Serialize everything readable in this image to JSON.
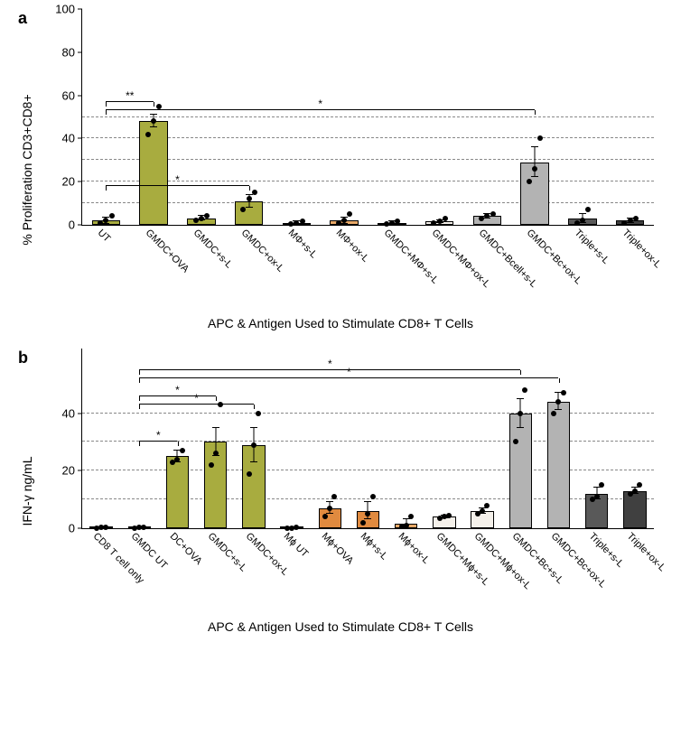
{
  "panel_a": {
    "label": "a",
    "type": "bar",
    "y_label": "% Proliferation CD3+CD8+",
    "x_axis_title": "APC & Antigen Used to Stimulate CD8+ T Cells",
    "ylim": [
      0,
      100
    ],
    "yticks": [
      0,
      20,
      40,
      60,
      80,
      100
    ],
    "gridlines": [
      10,
      20,
      30,
      40,
      50
    ],
    "grid_color": "#888888",
    "background_color": "#ffffff",
    "bar_border": "#000000",
    "point_color": "#000000",
    "label_fontsize": 13,
    "title_fontsize": 14,
    "colors": {
      "olive": "#a8ac3f",
      "darkorange": "#cc6b1f",
      "orange": "#e08a3f",
      "lightorange": "#e8a968",
      "whiteish": "#f4f0ea",
      "gray": "#b3b3b3",
      "darkgray": "#595959",
      "darkergray": "#404040"
    },
    "categories": [
      {
        "label": "UT",
        "value": 2,
        "err": 1.5,
        "points": [
          1,
          2,
          4
        ],
        "color": "olive"
      },
      {
        "label": "GMDC+OVA",
        "value": 48,
        "err": 3,
        "points": [
          42,
          48,
          55
        ],
        "color": "olive"
      },
      {
        "label": "GMDC+s-L",
        "value": 3,
        "err": 1,
        "points": [
          2,
          3,
          4
        ],
        "color": "olive"
      },
      {
        "label": "GMDC+ox-L",
        "value": 11,
        "err": 3,
        "points": [
          7,
          12,
          15
        ],
        "color": "olive"
      },
      {
        "label": "MΦ+s-L",
        "value": 1,
        "err": 0.5,
        "points": [
          0.5,
          1,
          1.5
        ],
        "color": "darkorange"
      },
      {
        "label": "MΦ+ox-L",
        "value": 2,
        "err": 1.5,
        "points": [
          1,
          2,
          5
        ],
        "color": "lightorange"
      },
      {
        "label": "GMDC+MΦ+s-L",
        "value": 1,
        "err": 0.5,
        "points": [
          0.5,
          1,
          1.5
        ],
        "color": "whiteish"
      },
      {
        "label": "GMDC+MΦ+ox-L",
        "value": 1.5,
        "err": 0.5,
        "points": [
          1,
          1.5,
          3
        ],
        "color": "whiteish"
      },
      {
        "label": "GMDC+Bcell+s-L",
        "value": 4,
        "err": 1,
        "points": [
          3,
          4,
          5
        ],
        "color": "gray"
      },
      {
        "label": "GMDC+Bc+ox-L",
        "value": 29,
        "err": 7,
        "points": [
          20,
          26,
          40
        ],
        "color": "gray"
      },
      {
        "label": "Triple+s-L",
        "value": 3,
        "err": 2,
        "points": [
          1,
          2,
          7
        ],
        "color": "darkgray"
      },
      {
        "label": "Triple+ox-L",
        "value": 2,
        "err": 1,
        "points": [
          1,
          2,
          3
        ],
        "color": "darkergray"
      }
    ],
    "sig_bars": [
      {
        "from": 0,
        "to": 1,
        "y": 57,
        "label": "**"
      },
      {
        "from": 0,
        "to": 3,
        "y": 18,
        "label": "*"
      },
      {
        "from": 0,
        "to": 9,
        "y": 53,
        "label": "*"
      }
    ]
  },
  "panel_b": {
    "label": "b",
    "type": "bar",
    "y_label": "IFN-γ ng/mL",
    "x_axis_title": "APC & Antigen Used to Stimulate CD8+ T Cells",
    "ylim": [
      0,
      50
    ],
    "yticks": [
      0,
      20,
      40
    ],
    "gridlines": [
      10,
      20,
      30,
      40
    ],
    "grid_color": "#888888",
    "background_color": "#ffffff",
    "bar_border": "#000000",
    "point_color": "#000000",
    "top_pad": 1.25,
    "colors": {
      "olive": "#a8ac3f",
      "darkorange": "#cc6b1f",
      "orange": "#e08a3f",
      "lightorange": "#e8a968",
      "whiteish": "#f4f0ea",
      "gray": "#b3b3b3",
      "darkgray": "#595959",
      "darkergray": "#404040"
    },
    "categories": [
      {
        "label": "CD8 T cell only",
        "value": 0.2,
        "err": 0.2,
        "points": [
          0.1,
          0.2,
          0.3
        ],
        "color": "olive"
      },
      {
        "label": "GMDC UT",
        "value": 0.2,
        "err": 0.2,
        "points": [
          0.1,
          0.2,
          0.3
        ],
        "color": "olive"
      },
      {
        "label": "DC+OVA",
        "value": 25,
        "err": 2,
        "points": [
          23,
          24,
          27
        ],
        "color": "olive"
      },
      {
        "label": "GMDC+s-L",
        "value": 30,
        "err": 5,
        "points": [
          22,
          26,
          43
        ],
        "color": "olive"
      },
      {
        "label": "GMDC+ox-L",
        "value": 29,
        "err": 6,
        "points": [
          19,
          29,
          40
        ],
        "color": "olive"
      },
      {
        "label": "Mϕ UT",
        "value": 0.1,
        "err": 0.1,
        "points": [
          0.05,
          0.1,
          0.2
        ],
        "color": "darkorange"
      },
      {
        "label": "Mϕ+OVA",
        "value": 7,
        "err": 2,
        "points": [
          4,
          7,
          11
        ],
        "color": "orange"
      },
      {
        "label": "Mϕ+s-L",
        "value": 6,
        "err": 3,
        "points": [
          2,
          5,
          11
        ],
        "color": "orange"
      },
      {
        "label": "Mϕ+ox-L",
        "value": 1.5,
        "err": 1.5,
        "points": [
          0.5,
          1,
          4
        ],
        "color": "lightorange"
      },
      {
        "label": "GMDC+Mϕ+s-L",
        "value": 4,
        "err": 0.5,
        "points": [
          3.5,
          4,
          4.5
        ],
        "color": "whiteish"
      },
      {
        "label": "GMDC+Mϕ+ox-L",
        "value": 6,
        "err": 1,
        "points": [
          5,
          6,
          8
        ],
        "color": "whiteish"
      },
      {
        "label": "GMDC+Bc+s-L",
        "value": 40,
        "err": 5,
        "points": [
          30,
          40,
          48
        ],
        "color": "gray"
      },
      {
        "label": "GMDC+Bc+ox-L",
        "value": 44,
        "err": 3,
        "points": [
          40,
          44,
          47
        ],
        "color": "gray"
      },
      {
        "label": "Triple+s-L",
        "value": 12,
        "err": 2,
        "points": [
          10,
          11,
          15
        ],
        "color": "darkgray"
      },
      {
        "label": "Triple+ox-L",
        "value": 13,
        "err": 1,
        "points": [
          12,
          13,
          15
        ],
        "color": "darkergray"
      }
    ],
    "sig_bars": [
      {
        "from": 1,
        "to": 2,
        "y": 30,
        "label": "*"
      },
      {
        "from": 1,
        "to": 3,
        "y": 46,
        "label": "*"
      },
      {
        "from": 1,
        "to": 4,
        "y": 43,
        "label": "*"
      },
      {
        "from": 1,
        "to": 11,
        "y": 55,
        "label": "*"
      },
      {
        "from": 1,
        "to": 12,
        "y": 52,
        "label": "*"
      }
    ]
  }
}
